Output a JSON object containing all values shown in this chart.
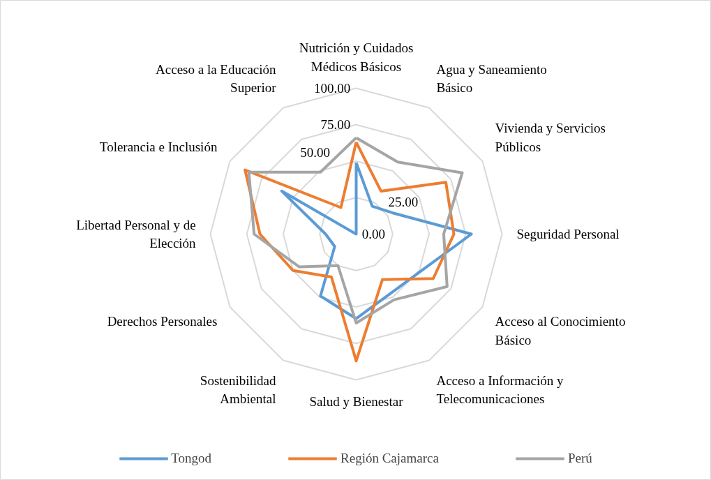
{
  "chart_data": {
    "type": "radar",
    "categories": [
      "Nutrición y Cuidados Médicos Básicos",
      "Agua y Saneamiento Básico",
      "Vivienda y Servicios Públicos",
      "Seguridad Personal",
      "Acceso al Conocimiento Básico",
      "Acceso a Información y Telecomunicaciones",
      "Salud y Bienestar",
      "Sostenibilidad Ambiental",
      "Derechos Personales",
      "Libertad Personal y de Elección",
      "Tolerancia e Inclusión",
      "Acceso a la Educación Superior"
    ],
    "series": [
      {
        "name": "Tongod",
        "color": "#5b9bd5",
        "values": [
          49,
          22,
          29,
          79,
          51,
          47,
          58,
          49,
          17,
          21,
          59,
          0
        ]
      },
      {
        "name": "Región Cajamarca",
        "color": "#ed7d31",
        "values": [
          63,
          34,
          71,
          67,
          61,
          36,
          87,
          34,
          50,
          66,
          88,
          21
        ]
      },
      {
        "name": "Perú",
        "color": "#a5a5a5",
        "values": [
          66,
          57,
          84,
          60,
          72,
          52,
          61,
          25,
          45,
          70,
          85,
          49
        ]
      }
    ],
    "ylim": [
      0,
      100
    ],
    "yticks": [
      {
        "value": 0,
        "label": "0.00"
      },
      {
        "value": 25,
        "label": "25.00"
      },
      {
        "value": 50,
        "label": "50.00"
      },
      {
        "value": 75,
        "label": "75.00"
      },
      {
        "value": 100,
        "label": "100.00"
      }
    ],
    "legend": "bottom",
    "grid": true
  }
}
